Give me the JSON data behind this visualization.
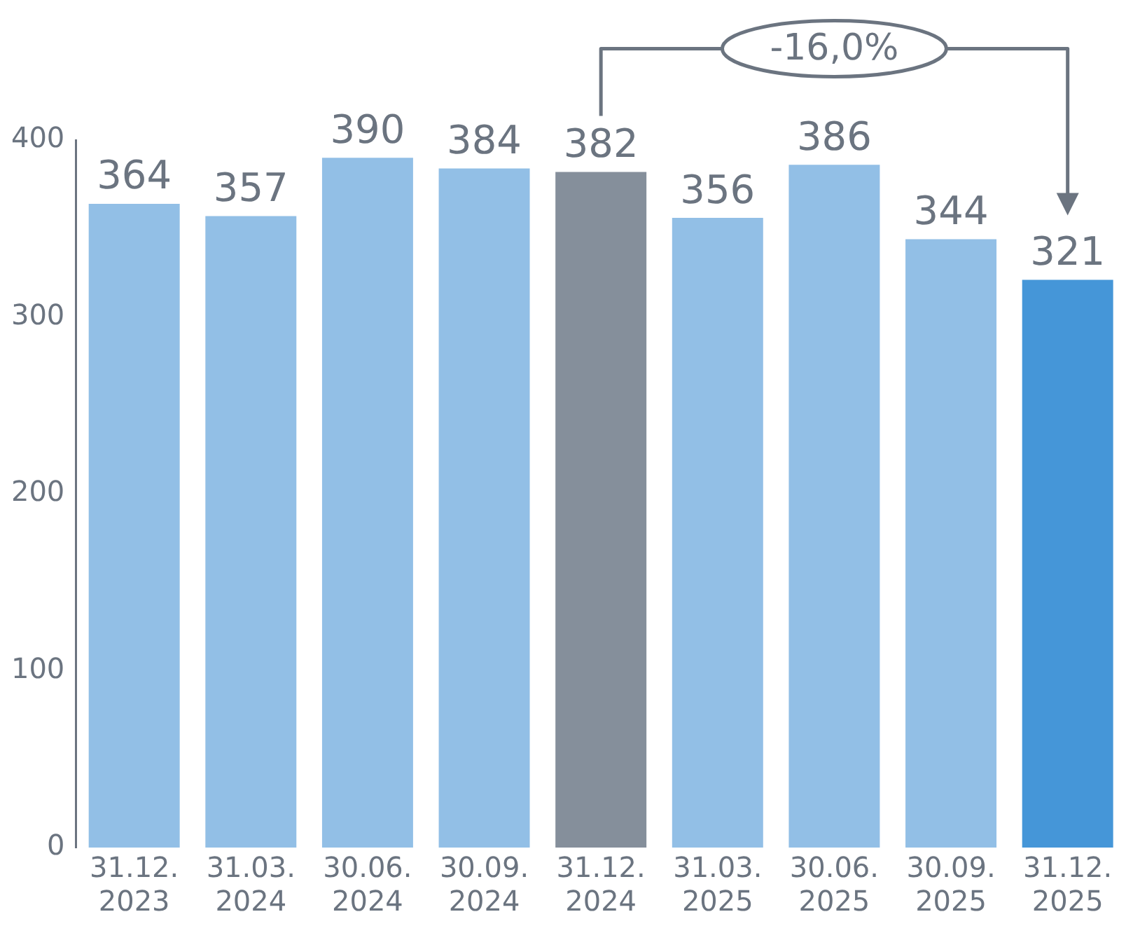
{
  "chart_data": {
    "type": "bar",
    "categories": [
      "31.12.\n2023",
      "31.03.\n2024",
      "30.06.\n2024",
      "30.09.\n2024",
      "31.12.\n2024",
      "31.03.\n2025",
      "30.06.\n2025",
      "30.09.\n2025",
      "31.12.\n2025"
    ],
    "values": [
      364,
      357,
      390,
      384,
      382,
      356,
      386,
      344,
      321
    ],
    "colors": [
      "#92bfe6",
      "#92bfe6",
      "#92bfe6",
      "#92bfe6",
      "#858f9b",
      "#92bfe6",
      "#92bfe6",
      "#92bfe6",
      "#4596d8"
    ],
    "ylim": [
      0,
      400
    ],
    "yticks": [
      0,
      100,
      200,
      300,
      400
    ],
    "data_labels": true,
    "grid": false,
    "legend": false,
    "annotations": [
      "-16,0%"
    ]
  }
}
